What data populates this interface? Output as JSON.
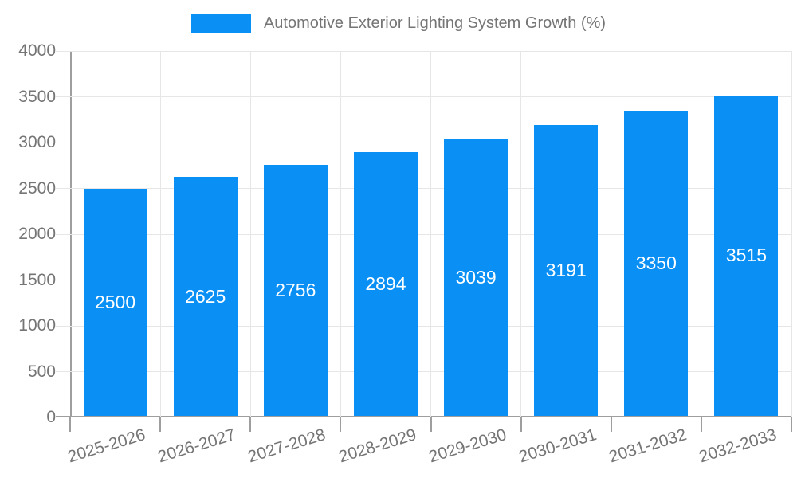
{
  "legend": {
    "label": "Automotive Exterior Lighting System Growth (%)"
  },
  "chart_data": {
    "type": "bar",
    "title": "Automotive Exterior Lighting System Growth (%)",
    "categories": [
      "2025-2026",
      "2026-2027",
      "2027-2028",
      "2028-2029",
      "2029-2030",
      "2030-2031",
      "2031-2032",
      "2032-2033"
    ],
    "values": [
      2500,
      2625,
      2756,
      2894,
      3039,
      3191,
      3350,
      3515
    ],
    "series_name": "Automotive Exterior Lighting System Growth (%)",
    "xlabel": "",
    "ylabel": "",
    "ylim": [
      0,
      4000
    ],
    "ytick_labels": [
      "0",
      "500",
      "1000",
      "1500",
      "2000",
      "2500",
      "3000",
      "3500",
      "4000"
    ],
    "grid": true,
    "legend_position": "top-center",
    "bar_color": "#0a8ff4",
    "bar_value_label_color": "#ffffff",
    "axis_color": "#9e9e9e",
    "grid_color": "#e6e6e6",
    "text_color": "#757575"
  }
}
